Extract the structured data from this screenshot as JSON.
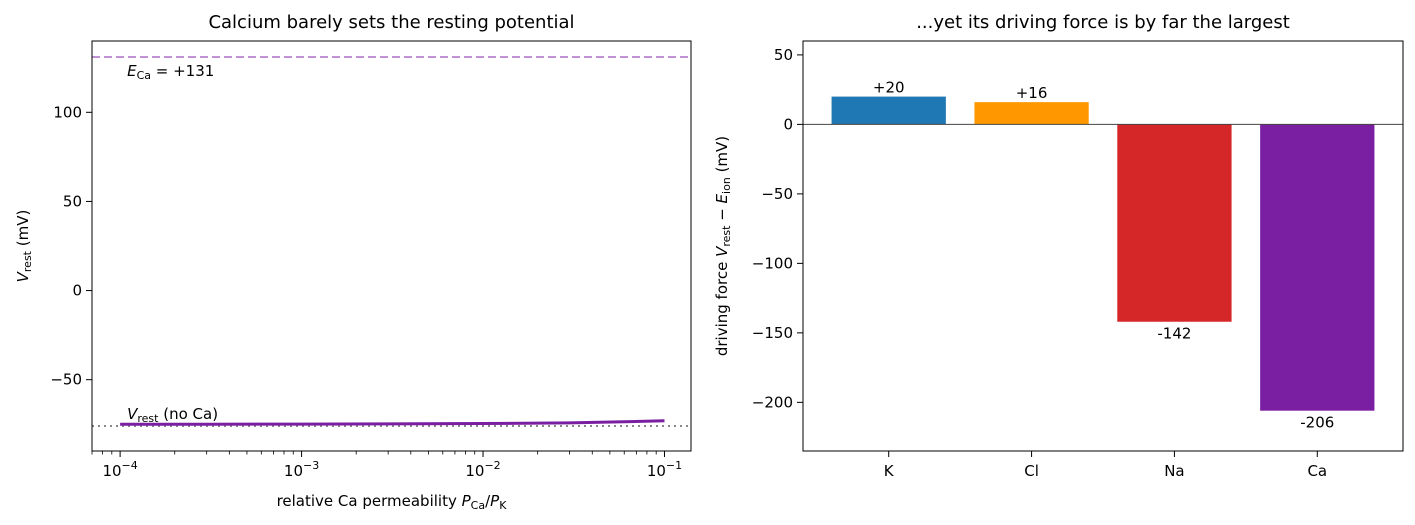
{
  "chart_data": [
    {
      "type": "line",
      "title": "Calcium barely sets the resting potential",
      "xlabel": {
        "prefix": "relative Ca permeability  ",
        "num": "P",
        "num_sub": "Ca",
        "sep": "/",
        "den": "P",
        "den_sub": "K"
      },
      "ylabel": {
        "main": "V",
        "sub": "rest",
        "unit": "  (mV)"
      },
      "xscale": "log",
      "xlim": [
        7e-05,
        0.14
      ],
      "ylim": [
        -90,
        140
      ],
      "xticks": [
        {
          "value": 0.0001,
          "base": "10",
          "exp": "−4"
        },
        {
          "value": 0.001,
          "base": "10",
          "exp": "−3"
        },
        {
          "value": 0.01,
          "base": "10",
          "exp": "−2"
        },
        {
          "value": 0.1,
          "base": "10",
          "exp": "−1"
        }
      ],
      "yticks": [
        {
          "value": 100,
          "label": "100"
        },
        {
          "value": 50,
          "label": "50"
        },
        {
          "value": 0,
          "label": "0"
        },
        {
          "value": -50,
          "label": "−50"
        }
      ],
      "series": [
        {
          "color": "#7b1fa2",
          "x": [
            0.0001,
            0.0003,
            0.001,
            0.003,
            0.01,
            0.03,
            0.06,
            0.1
          ],
          "y": [
            -75,
            -75,
            -74.9,
            -74.8,
            -74.6,
            -74.2,
            -73.6,
            -73
          ]
        }
      ],
      "reference_lines": [
        {
          "y": 131,
          "style": "dashed",
          "color": "#c192d6",
          "label_main": "E",
          "label_sub": "Ca",
          "label_rest": " = +131",
          "label_color": "#7b1fa2"
        },
        {
          "y": -76,
          "style": "dotted",
          "color": "#888888",
          "label_main": "V",
          "label_sub": "rest",
          "label_rest": " (no Ca)",
          "label_color": "#6e6e6e"
        }
      ],
      "grid": false
    },
    {
      "type": "bar",
      "title": "...yet its driving force is by far the largest",
      "ylabel": {
        "prefix": "driving force  ",
        "v": "V",
        "v_sub": "rest",
        "minus": " − ",
        "e": "E",
        "e_sub": "ion",
        "unit": "  (mV)"
      },
      "categories": [
        "K",
        "Cl",
        "Na",
        "Ca"
      ],
      "values": [
        20,
        16,
        -142,
        -206
      ],
      "value_labels": [
        "+20",
        "+16",
        "-142",
        "-206"
      ],
      "colors": [
        "#1f77b4",
        "#ff9800",
        "#d62728",
        "#7b1fa2"
      ],
      "ylim": [
        -235,
        60
      ],
      "yticks": [
        {
          "value": 50,
          "label": "50"
        },
        {
          "value": 0,
          "label": "0"
        },
        {
          "value": -50,
          "label": "−50"
        },
        {
          "value": -100,
          "label": "−100"
        },
        {
          "value": -150,
          "label": "−150"
        },
        {
          "value": -200,
          "label": "−200"
        }
      ],
      "zero_line": true,
      "grid": false
    }
  ]
}
